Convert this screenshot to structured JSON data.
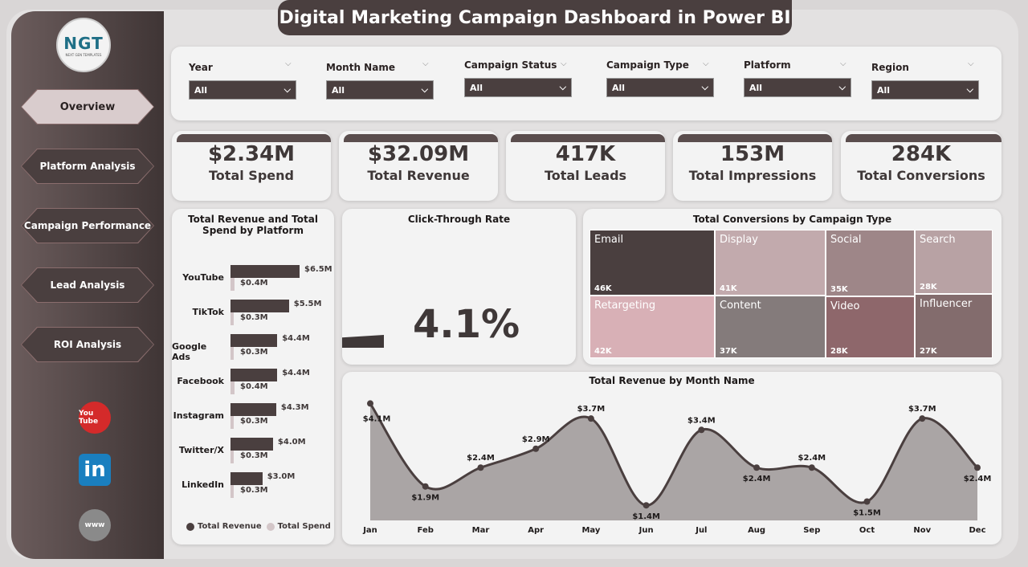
{
  "title": "Digital Marketing Campaign Dashboard in Power BI",
  "logo": {
    "text": "NGT",
    "tagline": "NEXT GEN TEMPLATES"
  },
  "nav": [
    {
      "label": "Overview",
      "active": true
    },
    {
      "label": "Platform Analysis"
    },
    {
      "label": "Campaign Performance"
    },
    {
      "label": "Lead Analysis"
    },
    {
      "label": "ROI Analysis"
    }
  ],
  "social": [
    {
      "icon": "youtube-icon",
      "text": "You Tube",
      "color": "#d42a2a"
    },
    {
      "icon": "linkedin-icon",
      "text": "in",
      "color": "#1a7fbf"
    },
    {
      "icon": "globe-icon",
      "text": "www",
      "color": "#8a8a8a"
    }
  ],
  "filters": [
    {
      "label": "Year",
      "value": "All"
    },
    {
      "label": "Month Name",
      "value": "All"
    },
    {
      "label": "Campaign Status",
      "value": "All"
    },
    {
      "label": "Campaign Type",
      "value": "All"
    },
    {
      "label": "Platform",
      "value": "All"
    },
    {
      "label": "Region",
      "value": "All"
    }
  ],
  "kpis": [
    {
      "value": "$2.34M",
      "label": "Total Spend"
    },
    {
      "value": "$32.09M",
      "label": "Total Revenue"
    },
    {
      "value": "417K",
      "label": "Total Leads"
    },
    {
      "value": "153M",
      "label": "Total Impressions"
    },
    {
      "value": "284K",
      "label": "Total Conversions"
    }
  ],
  "ctr": {
    "title": "Click-Through Rate",
    "value": "4.1%"
  },
  "chart_data": [
    {
      "type": "bar",
      "title": "Total Revenue and Total Spend by Platform",
      "orientation": "horizontal",
      "categories": [
        "YouTube",
        "TikTok",
        "Google Ads",
        "Facebook",
        "Instagram",
        "Twitter/X",
        "LinkedIn"
      ],
      "series": [
        {
          "name": "Total Revenue",
          "color": "#4a3f3f",
          "values": [
            6.5,
            5.5,
            4.4,
            4.4,
            4.3,
            4.0,
            3.0
          ],
          "labels": [
            "$6.5M",
            "$5.5M",
            "$4.4M",
            "$4.4M",
            "$4.3M",
            "$4.0M",
            "$3.0M"
          ]
        },
        {
          "name": "Total Spend",
          "color": "#d3c6c8",
          "values": [
            0.4,
            0.3,
            0.3,
            0.4,
            0.3,
            0.3,
            0.3
          ],
          "labels": [
            "$0.4M",
            "$0.3M",
            "$0.3M",
            "$0.4M",
            "$0.3M",
            "$0.3M",
            "$0.3M"
          ]
        }
      ],
      "legend": "bottom"
    },
    {
      "type": "treemap",
      "title": "Total Conversions by Campaign Type",
      "items": [
        {
          "name": "Email",
          "label": "46K",
          "value": 46,
          "color": "#4a3f3f"
        },
        {
          "name": "Display",
          "label": "41K",
          "value": 41,
          "color": "#c2aaad"
        },
        {
          "name": "Social",
          "label": "35K",
          "value": 35,
          "color": "#9e8688"
        },
        {
          "name": "Search",
          "label": "28K",
          "value": 28,
          "color": "#b8a2a4"
        },
        {
          "name": "Retargeting",
          "label": "42K",
          "value": 42,
          "color": "#d8b0b6"
        },
        {
          "name": "Content",
          "label": "37K",
          "value": 37,
          "color": "#847b7b"
        },
        {
          "name": "Video",
          "label": "28K",
          "value": 28,
          "color": "#8e676b"
        },
        {
          "name": "Influencer",
          "label": "27K",
          "value": 27,
          "color": "#836c6d"
        }
      ]
    },
    {
      "type": "area",
      "title": "Total Revenue by Month Name",
      "categories": [
        "Jan",
        "Feb",
        "Mar",
        "Apr",
        "May",
        "Jun",
        "Jul",
        "Aug",
        "Sep",
        "Oct",
        "Nov",
        "Dec"
      ],
      "values": [
        4.1,
        1.9,
        2.4,
        2.9,
        3.7,
        1.4,
        3.4,
        2.4,
        2.4,
        1.5,
        3.7,
        2.4
      ],
      "labels": [
        "$4.1M",
        "$1.9M",
        "$2.4M",
        "$2.9M",
        "$3.7M",
        "$1.4M",
        "$3.4M",
        "$2.4M",
        "$2.4M",
        "$1.5M",
        "$3.7M",
        "$2.4M"
      ],
      "ylim": [
        1.0,
        4.3
      ],
      "line_color": "#4a3f3f",
      "fill_color": "#aaa5a5"
    }
  ]
}
